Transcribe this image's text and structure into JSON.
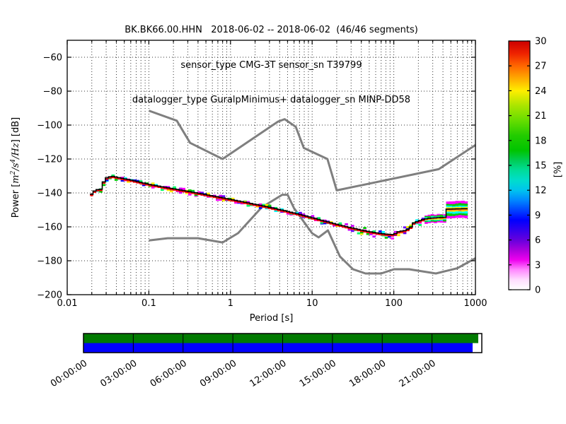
{
  "title": {
    "line1": "BK.BK66.00.HHN   2018-06-02 -- 2018-06-02  (46/46 segments)",
    "line2": "sensor_type CMG-3T sensor_sn T39799",
    "line3": "datalogger_type GuralpMinimus+ datalogger_sn MINP-DD58"
  },
  "chart_data": {
    "type": "heatmap",
    "subtype": "ppsd-probabilistic-power-spectral-density",
    "xlabel": "Period [s]",
    "ylabel_parts": {
      "p1": "Power [",
      "m1": "m",
      "e1": "2",
      "m2": "/s",
      "e2": "4",
      "m3": "/Hz",
      "p2": "] [dB]"
    },
    "xscale": "log",
    "xlim": [
      0.01,
      1000
    ],
    "ylim": [
      -200,
      -50
    ],
    "grid": "dotted, x major+minor (log), y major every 20 dB",
    "x_tick_labels": [
      "0.01",
      "0.1",
      "1",
      "10",
      "100",
      "1000"
    ],
    "y_tick_values": [
      -60,
      -80,
      -100,
      -120,
      -140,
      -160,
      -180,
      -200
    ],
    "y_tick_labels": [
      "−60",
      "−80",
      "−100",
      "−120",
      "−140",
      "−160",
      "−180",
      "−200"
    ],
    "colorbar": {
      "label": "[%]",
      "range": [
        0,
        30
      ],
      "ticks": [
        0,
        3,
        6,
        9,
        12,
        15,
        18,
        21,
        24,
        27,
        30
      ],
      "tick_labels": [
        "0",
        "3",
        "6",
        "9",
        "12",
        "15",
        "18",
        "21",
        "24",
        "27",
        "30"
      ],
      "colormap_name": "pqlx",
      "gradient_stops": [
        [
          0.0,
          "#ffffff"
        ],
        [
          0.04,
          "#ffddff"
        ],
        [
          0.08,
          "#ff88ff"
        ],
        [
          0.12,
          "#ee00ee"
        ],
        [
          0.16,
          "#aa00dd"
        ],
        [
          0.2,
          "#6600dd"
        ],
        [
          0.24,
          "#3300ee"
        ],
        [
          0.28,
          "#0000ff"
        ],
        [
          0.32,
          "#0044ff"
        ],
        [
          0.36,
          "#0088ff"
        ],
        [
          0.4,
          "#00c4ee"
        ],
        [
          0.44,
          "#00ddcc"
        ],
        [
          0.48,
          "#00dd99"
        ],
        [
          0.52,
          "#00cc55"
        ],
        [
          0.56,
          "#00c400"
        ],
        [
          0.62,
          "#22cc00"
        ],
        [
          0.68,
          "#66dd00"
        ],
        [
          0.74,
          "#aae500"
        ],
        [
          0.8,
          "#ffee00"
        ],
        [
          0.85,
          "#ffaa00"
        ],
        [
          0.9,
          "#ff6600"
        ],
        [
          0.95,
          "#ee2200"
        ],
        [
          1.0,
          "#cc0000"
        ]
      ]
    },
    "noise_models": {
      "color": "#7f7f7f",
      "nhnm": [
        [
          0.1,
          -91.5
        ],
        [
          0.22,
          -97.4
        ],
        [
          0.32,
          -110.5
        ],
        [
          0.8,
          -120.0
        ],
        [
          3.8,
          -98.0
        ],
        [
          4.6,
          -96.5
        ],
        [
          6.3,
          -101.0
        ],
        [
          7.9,
          -113.5
        ],
        [
          15.4,
          -120.0
        ],
        [
          20.0,
          -138.5
        ],
        [
          354.8,
          -126.0
        ],
        [
          1000,
          -111.8
        ]
      ],
      "nlnm": [
        [
          0.1,
          -168.0
        ],
        [
          0.17,
          -166.7
        ],
        [
          0.4,
          -166.7
        ],
        [
          0.8,
          -169.2
        ],
        [
          1.24,
          -163.7
        ],
        [
          2.4,
          -148.6
        ],
        [
          4.3,
          -141.1
        ],
        [
          5.0,
          -141.1
        ],
        [
          6.0,
          -149.0
        ],
        [
          10.0,
          -163.8
        ],
        [
          12.0,
          -166.2
        ],
        [
          15.6,
          -162.1
        ],
        [
          21.9,
          -177.5
        ],
        [
          31.6,
          -185.0
        ],
        [
          45.0,
          -187.5
        ],
        [
          70.0,
          -187.5
        ],
        [
          101.0,
          -185.0
        ],
        [
          154.0,
          -185.0
        ],
        [
          328.0,
          -187.5
        ],
        [
          600.0,
          -184.4
        ],
        [
          1000,
          -178.5
        ]
      ]
    },
    "psd_mode_line": [
      [
        0.019,
        -142.5
      ],
      [
        0.0205,
        -140.2
      ],
      [
        0.0225,
        -138.6
      ],
      [
        0.026,
        -138.2
      ],
      [
        0.0285,
        -133.0
      ],
      [
        0.031,
        -131.2
      ],
      [
        0.036,
        -130.6
      ],
      [
        0.045,
        -131.6
      ],
      [
        0.06,
        -132.8
      ],
      [
        0.08,
        -134.2
      ],
      [
        0.1,
        -135.3
      ],
      [
        0.15,
        -136.9
      ],
      [
        0.22,
        -138.3
      ],
      [
        0.33,
        -139.8
      ],
      [
        0.5,
        -141.4
      ],
      [
        0.75,
        -143.0
      ],
      [
        1.1,
        -144.6
      ],
      [
        1.7,
        -146.4
      ],
      [
        2.6,
        -148.2
      ],
      [
        4.0,
        -150.2
      ],
      [
        6.0,
        -152.2
      ],
      [
        9.0,
        -154.4
      ],
      [
        13,
        -156.5
      ],
      [
        19,
        -158.6
      ],
      [
        28,
        -160.6
      ],
      [
        42,
        -162.5
      ],
      [
        60,
        -163.9
      ],
      [
        80,
        -164.7
      ],
      [
        100,
        -165.0
      ],
      [
        115,
        -163.2
      ],
      [
        140,
        -162.5
      ],
      [
        158,
        -161.2
      ],
      [
        175,
        -158.2
      ],
      [
        200,
        -157.0
      ],
      [
        240,
        -155.8
      ],
      [
        300,
        -155.2
      ],
      [
        420,
        -154.8
      ],
      [
        435,
        -150.0
      ],
      [
        740,
        -149.7
      ]
    ],
    "psd_period_range": [
      0.019,
      740
    ],
    "histogram": {
      "core_color": "#ff0000",
      "mode_color": "#000000",
      "speckle_palette": [
        "#0000ff",
        "#6600ff",
        "#cc00ff",
        "#ff00ff",
        "#00cc00",
        "#00ff66",
        "#00ffff",
        "#ffee00"
      ],
      "wide_band_colors": [
        [
          "#ff00ff",
          1.0
        ],
        [
          "#00cc00",
          0.7
        ],
        [
          "#00ffff",
          0.45
        ],
        [
          "#ffee00",
          0.26
        ],
        [
          "#ff8800",
          0.13
        ]
      ]
    }
  },
  "timeline": {
    "top_row_color": "#007a00",
    "bottom_row_color": "#0000ff",
    "gap_color": "#ffffff",
    "tick_labels": [
      "00:00:00",
      "03:00:00",
      "06:00:00",
      "09:00:00",
      "12:00:00",
      "15:00:00",
      "18:00:00",
      "21:00:00"
    ]
  }
}
